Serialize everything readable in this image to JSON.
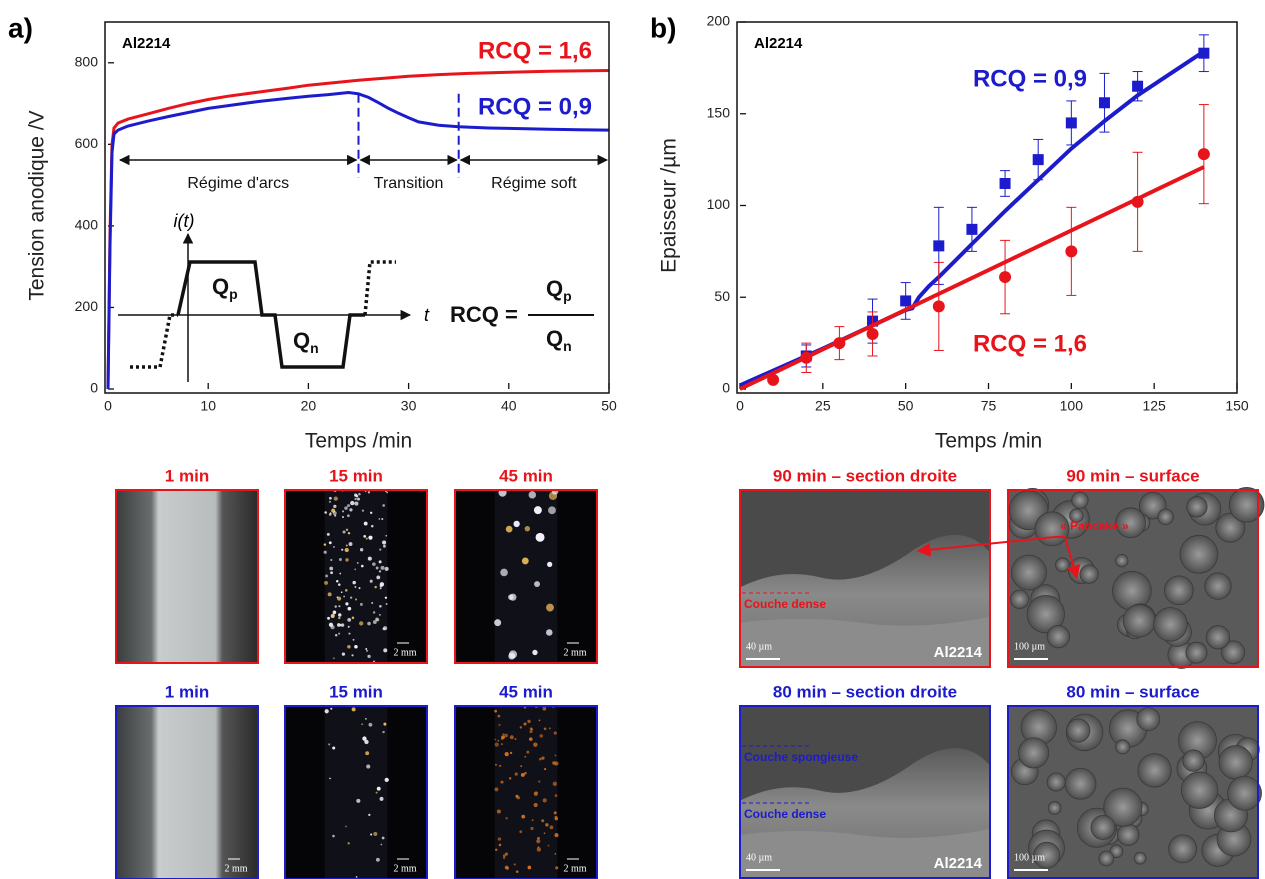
{
  "chart_data": [
    {
      "type": "line",
      "panel": "a)",
      "title": "Al2214",
      "xlabel": "Temps /min",
      "ylabel": "Tension anodique /V",
      "xlim": [
        0,
        50
      ],
      "ylim": [
        0,
        900
      ],
      "xticks": [
        0,
        10,
        20,
        30,
        40,
        50
      ],
      "yticks": [
        0,
        200,
        400,
        600,
        800
      ],
      "series": [
        {
          "name": "RCQ = 1,6",
          "color": "#e8141c",
          "x": [
            0,
            0.2,
            0.4,
            0.6,
            1,
            2,
            4,
            6,
            8,
            10,
            12,
            15,
            18,
            20,
            22,
            25,
            28,
            30,
            33,
            36,
            40,
            44,
            47,
            50
          ],
          "values": [
            0,
            380,
            600,
            640,
            652,
            662,
            675,
            688,
            700,
            710,
            718,
            728,
            738,
            745,
            750,
            757,
            763,
            767,
            771,
            774,
            777,
            779,
            780,
            781
          ]
        },
        {
          "name": "RCQ = 0,9",
          "color": "#1c1ccc",
          "x": [
            0,
            0.2,
            0.4,
            0.6,
            1,
            2,
            4,
            6,
            8,
            10,
            12,
            15,
            18,
            20,
            22,
            24,
            25,
            26,
            27,
            28,
            29,
            30,
            31,
            33,
            35,
            38,
            40,
            44,
            47,
            50
          ],
          "values": [
            0,
            350,
            580,
            625,
            635,
            645,
            657,
            668,
            678,
            688,
            695,
            705,
            713,
            718,
            722,
            727,
            724,
            715,
            702,
            688,
            676,
            665,
            655,
            647,
            643,
            640,
            639,
            637,
            636,
            635
          ]
        }
      ],
      "regions": [
        {
          "label": "Régime d'arcs",
          "from": 1,
          "to": 25
        },
        {
          "label": "Transition",
          "from": 25,
          "to": 35
        },
        {
          "label": "Régime soft",
          "from": 35,
          "to": 50
        }
      ],
      "inset": {
        "current": "i(t)",
        "time": "t",
        "positive": {
          "symbol": "Q",
          "subscript": "p"
        },
        "negative": {
          "symbol": "Q",
          "subscript": "n"
        },
        "formula": "RCQ ="
      }
    },
    {
      "type": "scatter",
      "panel": "b)",
      "title": "Al2214",
      "xlabel": "Temps /min",
      "ylabel": "Epaisseur /µm",
      "xlim": [
        0,
        150
      ],
      "ylim": [
        0,
        200
      ],
      "xticks": [
        0,
        25,
        50,
        75,
        100,
        125,
        150
      ],
      "yticks": [
        0,
        50,
        100,
        150,
        200
      ],
      "series": [
        {
          "name": "RCQ = 0,9",
          "color": "#1c1ccc",
          "marker": "square",
          "x": [
            20,
            40,
            50,
            60,
            70,
            80,
            90,
            100,
            110,
            120,
            140
          ],
          "values": [
            18,
            37,
            48,
            78,
            87,
            112,
            125,
            145,
            156,
            165,
            183
          ],
          "errors": [
            6,
            12,
            10,
            21,
            12,
            7,
            11,
            12,
            16,
            8,
            10
          ],
          "fit": {
            "x": [
              0,
              25,
              50,
              52,
              54,
              57,
              60,
              70,
              80,
              90,
              100,
              110,
              120,
              130,
              140
            ],
            "values": [
              2,
              22,
              43,
              44,
              50,
              56,
              61,
              79,
              97,
              114,
              131,
              146,
              160,
              172,
              184
            ]
          }
        },
        {
          "name": "RCQ = 1,6",
          "color": "#e8141c",
          "marker": "circle",
          "x": [
            10,
            20,
            30,
            40,
            60,
            80,
            100,
            120,
            140
          ],
          "values": [
            5,
            17,
            25,
            30,
            45,
            61,
            75,
            102,
            128
          ],
          "errors": [
            0,
            8,
            9,
            12,
            24,
            20,
            24,
            27,
            27
          ],
          "fit": {
            "x": [
              0,
              140
            ],
            "values": [
              0,
              121
            ]
          }
        }
      ]
    }
  ],
  "optical_images": [
    {
      "title": "1 min",
      "color": "#e8141c"
    },
    {
      "title": "15 min",
      "color": "#e8141c",
      "scale": "2 mm"
    },
    {
      "title": "45 min",
      "color": "#e8141c",
      "scale": "2 mm"
    },
    {
      "title": "1 min",
      "color": "#1c1ccc",
      "scale": "2 mm"
    },
    {
      "title": "15 min",
      "color": "#1c1ccc",
      "scale": "2 mm"
    },
    {
      "title": "45 min",
      "color": "#1c1ccc",
      "scale": "2 mm"
    }
  ],
  "sem_images": [
    {
      "title": "90 min – section droite",
      "color": "#e8141c",
      "labels": [
        "Couche dense"
      ],
      "scale": "40 µm",
      "alloy": "Al2214"
    },
    {
      "title": "90 min – surface",
      "color": "#e8141c",
      "labels": [
        "« Pancake »"
      ],
      "scale": "100 µm"
    },
    {
      "title": "80 min – section droite",
      "color": "#1c1ccc",
      "labels": [
        "Couche spongieuse",
        "Couche dense"
      ],
      "scale": "40 µm",
      "alloy": "Al2214"
    },
    {
      "title": "80 min – surface",
      "color": "#1c1ccc",
      "scale": "100 µm"
    }
  ]
}
